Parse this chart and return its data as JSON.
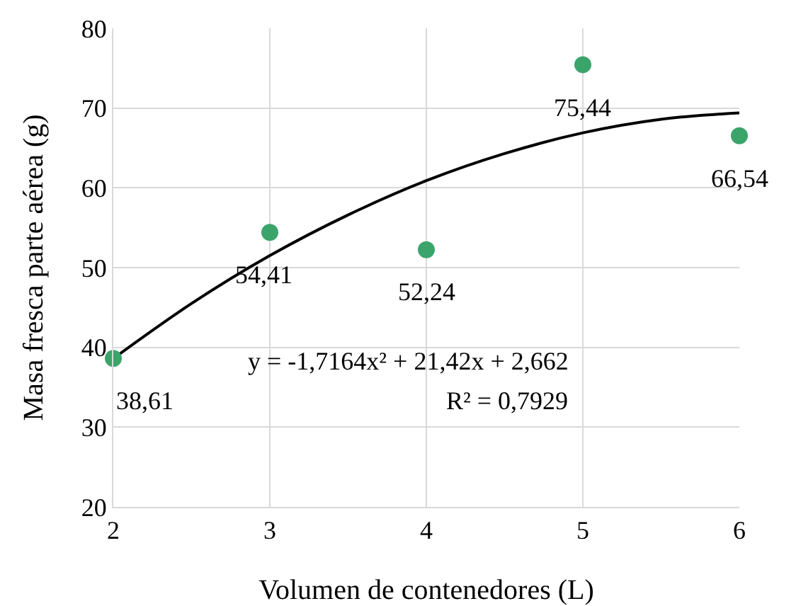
{
  "chart_data": {
    "type": "scatter",
    "xlabel": "Volumen de contenedores (L)",
    "ylabel": "Masa fresca parte aérea (g)",
    "x": [
      2,
      3,
      4,
      5,
      6
    ],
    "series": [
      {
        "color": "#3ba46b",
        "values": [
          38.61,
          54.41,
          52.24,
          75.44,
          66.54
        ],
        "value_labels": [
          "38,61",
          "54,41",
          "52,24",
          "75,44",
          "66,54"
        ],
        "marker": "circle"
      },
      {
        "type": "line",
        "color": "#000000",
        "x": [
          2,
          2.5,
          3,
          3.5,
          4,
          4.5,
          5,
          5.5,
          6
        ],
        "values": [
          38.6,
          45.5,
          51.5,
          56.6,
          60.9,
          64.3,
          66.9,
          68.6,
          69.4
        ],
        "marker": "none",
        "line_style": "solid"
      }
    ],
    "annotations": [
      "y = -1,7164x² + 21,42x + 2,662",
      "R² = 0,7929"
    ],
    "xlim": [
      2,
      6
    ],
    "xticks": [
      2,
      3,
      4,
      5,
      6
    ],
    "ylim": [
      20,
      80
    ],
    "yticks": [
      20,
      30,
      40,
      50,
      60,
      70,
      80
    ],
    "grid": true
  }
}
